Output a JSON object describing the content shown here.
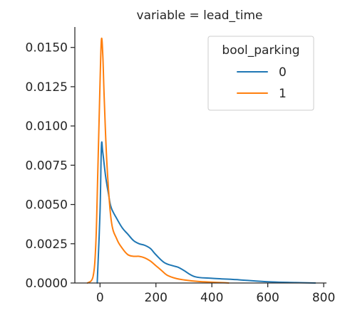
{
  "chart_data": {
    "type": "line",
    "title": "variable = lead_time",
    "xlabel": "",
    "ylabel": "",
    "xlim": [
      -90,
      810
    ],
    "ylim": [
      0,
      0.0163
    ],
    "xticks": [
      {
        "value": 0,
        "label": "0"
      },
      {
        "value": 200,
        "label": "200"
      },
      {
        "value": 400,
        "label": "400"
      },
      {
        "value": 600,
        "label": "600"
      },
      {
        "value": 800,
        "label": "800"
      }
    ],
    "yticks": [
      {
        "value": 0.0,
        "label": "0.0000"
      },
      {
        "value": 0.0025,
        "label": "0.0025"
      },
      {
        "value": 0.005,
        "label": "0.0050"
      },
      {
        "value": 0.0075,
        "label": "0.0075"
      },
      {
        "value": 0.01,
        "label": "0.0100"
      },
      {
        "value": 0.0125,
        "label": "0.0125"
      },
      {
        "value": 0.015,
        "label": "0.0150"
      }
    ],
    "grid": false,
    "legend": {
      "title": "bool_parking",
      "placement": "top-right"
    },
    "series": [
      {
        "name": "0",
        "color": "#1f77b4",
        "x": [
          -10,
          0,
          5,
          10,
          20,
          30,
          40,
          60,
          80,
          100,
          120,
          140,
          160,
          180,
          200,
          230,
          260,
          280,
          300,
          340,
          400,
          500,
          600,
          700,
          770
        ],
        "y": [
          0.0,
          0.0045,
          0.0087,
          0.0083,
          0.0068,
          0.0057,
          0.0048,
          0.0041,
          0.0035,
          0.0031,
          0.0027,
          0.0025,
          0.0024,
          0.0022,
          0.0018,
          0.0013,
          0.0011,
          0.001,
          0.0008,
          0.0004,
          0.0003,
          0.0002,
          8e-05,
          3e-05,
          0.0
        ]
      },
      {
        "name": "1",
        "color": "#ff7f0e",
        "x": [
          -45,
          -25,
          -15,
          -8,
          0,
          5,
          10,
          15,
          25,
          40,
          60,
          80,
          100,
          120,
          140,
          160,
          180,
          200,
          220,
          240,
          270,
          300,
          350,
          400,
          440,
          460
        ],
        "y": [
          0.0,
          0.0004,
          0.0025,
          0.007,
          0.0127,
          0.0155,
          0.0145,
          0.0118,
          0.0075,
          0.004,
          0.0028,
          0.0022,
          0.0018,
          0.0017,
          0.0017,
          0.0016,
          0.0014,
          0.0011,
          0.0008,
          0.0005,
          0.0003,
          0.0002,
          0.0001,
          5e-05,
          2e-05,
          0.0
        ]
      }
    ]
  }
}
